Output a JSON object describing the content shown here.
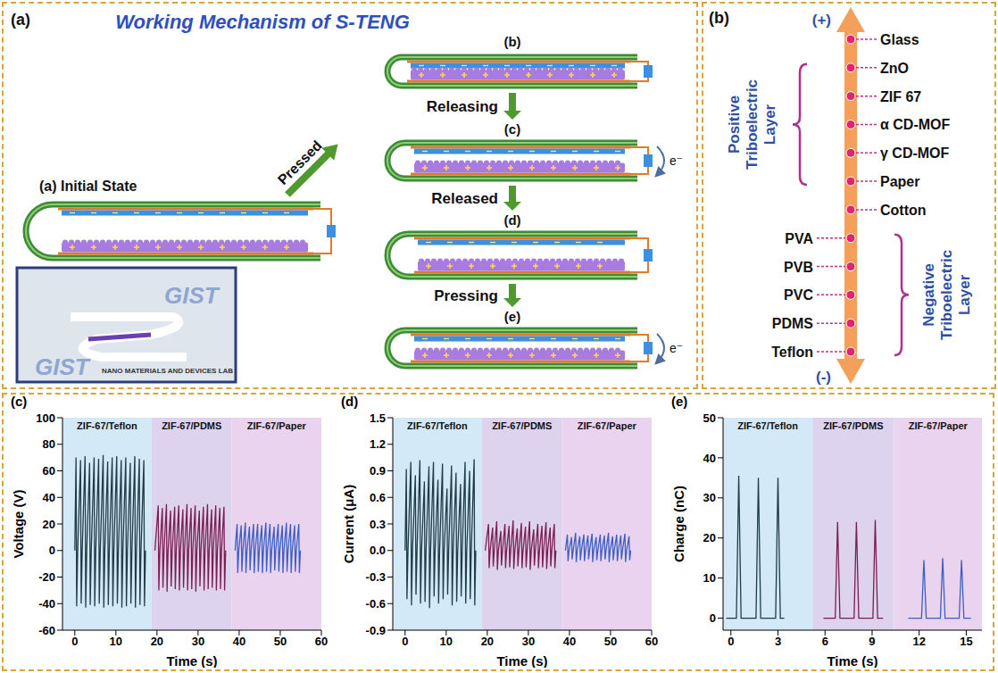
{
  "mechanism": {
    "panel": "(a)",
    "title": "Working Mechanism of S-TENG",
    "initial_state": "(a) Initial State",
    "pressed": "Pressed",
    "electron_label": "e⁻",
    "states": [
      {
        "label": "(b)",
        "electron": false
      },
      {
        "label": "(c)",
        "electron": true
      },
      {
        "label": "(d)",
        "electron": false
      },
      {
        "label": "(e)",
        "electron": true
      }
    ],
    "transitions": [
      "Releasing",
      "Released",
      "Pressing"
    ],
    "inset_texts": [
      "GIST",
      "NANO MATERIALS AND DEVICES LAB"
    ]
  },
  "triboelectric_series": {
    "panel": "(b)",
    "top": "(+)",
    "bottom": "(-)",
    "materials": [
      {
        "name": "Glass",
        "side": "right"
      },
      {
        "name": "ZnO",
        "side": "right"
      },
      {
        "name": "ZIF 67",
        "side": "right"
      },
      {
        "name": "α CD-MOF",
        "side": "right"
      },
      {
        "name": "γ CD-MOF",
        "side": "right"
      },
      {
        "name": "Paper",
        "side": "right"
      },
      {
        "name": "Cotton",
        "side": "right"
      },
      {
        "name": "PVA",
        "side": "left"
      },
      {
        "name": "PVB",
        "side": "left"
      },
      {
        "name": "PVC",
        "side": "left"
      },
      {
        "name": "PDMS",
        "side": "left"
      },
      {
        "name": "Teflon",
        "side": "left"
      }
    ],
    "groups": [
      {
        "label": "Positive Triboelectric Layer",
        "from": "ZnO",
        "to": "Paper",
        "side": "left"
      },
      {
        "label": "Negative Triboelectric Layer",
        "from": "PVA",
        "to": "Teflon",
        "side": "right"
      }
    ]
  },
  "chart_data": [
    {
      "type": "line",
      "panel": "(c)",
      "x_label": "Time (s)",
      "y_label": "Voltage (V)",
      "xlim": [
        -3,
        60
      ],
      "xticks": [
        0,
        10,
        20,
        30,
        40,
        50,
        60
      ],
      "ylim": [
        -60,
        100
      ],
      "yticks": [
        -60,
        -40,
        -20,
        0,
        20,
        40,
        60,
        80,
        100
      ],
      "series": [
        {
          "name": "ZIF-67/Teflon",
          "color": "#1f3d47",
          "background": "#d4e9f7",
          "region": [
            -3,
            18.7
          ],
          "x": [
            0,
            0.3,
            0.45,
            0.7,
            1.4,
            1.55,
            1.8,
            2.5,
            2.65,
            2.9,
            3.6,
            3.75,
            4.0,
            4.7,
            4.85,
            5.1,
            5.8,
            5.95,
            6.2,
            6.9,
            7.05,
            7.3,
            8.0,
            8.15,
            8.4,
            9.1,
            9.25,
            9.5,
            10.2,
            10.35,
            10.6,
            11.3,
            11.45,
            11.7,
            12.4,
            12.55,
            12.8,
            13.5,
            13.65,
            13.9,
            14.6,
            14.75,
            15.0,
            15.7,
            15.85,
            16.1,
            16.8,
            16.95,
            17.2
          ],
          "values": [
            0,
            70,
            -42,
            0,
            68,
            -40,
            0,
            71,
            -43,
            0,
            66,
            -41,
            0,
            70,
            -42,
            0,
            69,
            -40,
            0,
            72,
            -43,
            0,
            67,
            -41,
            0,
            70,
            -42,
            0,
            71,
            -40,
            0,
            68,
            -43,
            0,
            70,
            -42,
            0,
            66,
            -40,
            0,
            71,
            -43,
            0,
            69,
            -41,
            0,
            68,
            -42,
            0
          ]
        },
        {
          "name": "ZIF-67/PDMS",
          "color": "#7b1e52",
          "background": "#ddd3ef",
          "region": [
            18.7,
            38.2
          ],
          "x": [
            19.5,
            20.3,
            20.45,
            20.7,
            21.3,
            21.45,
            21.7,
            22.3,
            22.45,
            22.7,
            23.3,
            23.45,
            23.7,
            24.3,
            24.45,
            24.7,
            25.3,
            25.45,
            25.7,
            26.3,
            26.45,
            26.7,
            27.3,
            27.45,
            27.7,
            28.3,
            28.45,
            28.7,
            29.3,
            29.45,
            29.7,
            30.3,
            30.45,
            30.7,
            31.3,
            31.45,
            31.7,
            32.3,
            32.45,
            32.7,
            33.3,
            33.45,
            33.7,
            34.3,
            34.45,
            34.7,
            35.3,
            35.45,
            35.7,
            36.3,
            36.45,
            36.7
          ],
          "values": [
            0,
            34,
            -30,
            0,
            32,
            -28,
            0,
            35,
            -31,
            0,
            30,
            -27,
            0,
            33,
            -29,
            0,
            34,
            -30,
            0,
            31,
            -28,
            0,
            35,
            -30,
            0,
            32,
            -29,
            0,
            34,
            -31,
            0,
            30,
            -27,
            0,
            33,
            -30,
            0,
            35,
            -29,
            0,
            31,
            -28,
            0,
            34,
            -30,
            0,
            32,
            -29,
            0,
            33,
            -30,
            0
          ]
        },
        {
          "name": "ZIF-67/Paper",
          "color": "#3d5fc4",
          "background": "#ead3ee",
          "region": [
            38.2,
            60
          ],
          "x": [
            39,
            39.5,
            39.65,
            39.9,
            40.5,
            40.65,
            40.9,
            41.5,
            41.65,
            41.9,
            42.5,
            42.65,
            42.9,
            43.5,
            43.65,
            43.9,
            44.5,
            44.65,
            44.9,
            45.5,
            45.65,
            45.9,
            46.5,
            46.65,
            46.9,
            47.5,
            47.65,
            47.9,
            48.5,
            48.65,
            48.9,
            49.5,
            49.65,
            49.9,
            50.5,
            50.65,
            50.9,
            51.5,
            51.65,
            51.9,
            52.5,
            52.65,
            52.9,
            53.5,
            53.65,
            53.9,
            54.5,
            54.65,
            54.9
          ],
          "values": [
            0,
            20,
            -17,
            0,
            19,
            -16,
            0,
            21,
            -17,
            0,
            18,
            -15,
            0,
            20,
            -17,
            0,
            20,
            -16,
            0,
            19,
            -17,
            0,
            21,
            -16,
            0,
            20,
            -17,
            0,
            18,
            -15,
            0,
            20,
            -16,
            0,
            19,
            -17,
            0,
            21,
            -16,
            0,
            20,
            -17,
            0,
            19,
            -16,
            0,
            20,
            -17,
            0
          ]
        }
      ]
    },
    {
      "type": "line",
      "panel": "(d)",
      "x_label": "Time (s)",
      "y_label": "Current (μA)",
      "xlim": [
        -3,
        60
      ],
      "xticks": [
        0,
        10,
        20,
        30,
        40,
        50,
        60
      ],
      "ylim": [
        -0.9,
        1.5
      ],
      "yticks": [
        -0.9,
        -0.6,
        -0.3,
        {
          "value": 0,
          "label": "0.0"
        },
        0.3,
        0.6,
        0.9,
        1.2,
        1.5
      ],
      "series": [
        {
          "name": "ZIF-67/Teflon",
          "color": "#1f3d47",
          "background": "#d4e9f7",
          "region": [
            -3,
            18.7
          ],
          "x": [
            0,
            0.3,
            0.45,
            0.7,
            1.4,
            1.55,
            1.8,
            2.5,
            2.65,
            2.9,
            3.6,
            3.75,
            4.0,
            4.7,
            4.85,
            5.1,
            5.8,
            5.95,
            6.2,
            6.9,
            7.05,
            7.3,
            8.0,
            8.15,
            8.4,
            9.1,
            9.25,
            9.5,
            10.2,
            10.35,
            10.6,
            11.3,
            11.45,
            11.7,
            12.4,
            12.55,
            12.8,
            13.5,
            13.65,
            13.9,
            14.6,
            14.75,
            15.0,
            15.7,
            15.85,
            16.1,
            16.8,
            16.95,
            17.2
          ],
          "values": [
            0,
            0.92,
            -0.55,
            0,
            1.0,
            -0.62,
            0,
            0.85,
            -0.5,
            0,
            1.02,
            -0.6,
            0,
            0.78,
            -0.58,
            0,
            0.95,
            -0.65,
            0,
            1.0,
            -0.52,
            0,
            0.8,
            -0.6,
            0,
            0.98,
            -0.55,
            0,
            0.7,
            -0.5,
            0,
            0.96,
            -0.62,
            0,
            0.88,
            -0.58,
            0,
            0.75,
            -0.52,
            0,
            1.0,
            -0.6,
            0,
            0.9,
            -0.55,
            0,
            1.03,
            -0.62,
            0
          ]
        },
        {
          "name": "ZIF-67/PDMS",
          "color": "#7b1e52",
          "background": "#ddd3ef",
          "region": [
            18.7,
            38.2
          ],
          "x": [
            19.5,
            20.3,
            20.45,
            20.7,
            21.3,
            21.45,
            21.7,
            22.3,
            22.45,
            22.7,
            23.3,
            23.45,
            23.7,
            24.3,
            24.45,
            24.7,
            25.3,
            25.45,
            25.7,
            26.3,
            26.45,
            26.7,
            27.3,
            27.45,
            27.7,
            28.3,
            28.45,
            28.7,
            29.3,
            29.45,
            29.7,
            30.3,
            30.45,
            30.7,
            31.3,
            31.45,
            31.7,
            32.3,
            32.45,
            32.7,
            33.3,
            33.45,
            33.7,
            34.3,
            34.45,
            34.7,
            35.3,
            35.45,
            35.7,
            36.3,
            36.45,
            36.7
          ],
          "values": [
            0,
            0.3,
            -0.2,
            0,
            0.26,
            -0.18,
            0,
            0.33,
            -0.22,
            0,
            0.22,
            -0.17,
            0,
            0.3,
            -0.2,
            0,
            0.28,
            -0.19,
            0,
            0.34,
            -0.21,
            0,
            0.25,
            -0.18,
            0,
            0.31,
            -0.2,
            0,
            0.27,
            -0.19,
            0,
            0.33,
            -0.22,
            0,
            0.24,
            -0.17,
            0,
            0.3,
            -0.2,
            0,
            0.28,
            -0.19,
            0,
            0.32,
            -0.21,
            0,
            0.26,
            -0.18,
            0,
            0.3,
            -0.2,
            0
          ]
        },
        {
          "name": "ZIF-67/Paper",
          "color": "#3d5fc4",
          "background": "#ead3ee",
          "region": [
            38.2,
            60
          ],
          "x": [
            39,
            39.5,
            39.65,
            39.9,
            40.5,
            40.65,
            40.9,
            41.5,
            41.65,
            41.9,
            42.5,
            42.65,
            42.9,
            43.5,
            43.65,
            43.9,
            44.5,
            44.65,
            44.9,
            45.5,
            45.65,
            45.9,
            46.5,
            46.65,
            46.9,
            47.5,
            47.65,
            47.9,
            48.5,
            48.65,
            48.9,
            49.5,
            49.65,
            49.9,
            50.5,
            50.65,
            50.9,
            51.5,
            51.65,
            51.9,
            52.5,
            52.65,
            52.9,
            53.5,
            53.65,
            53.9,
            54.5,
            54.65,
            54.9
          ],
          "values": [
            0,
            0.18,
            -0.12,
            0,
            0.15,
            -0.1,
            0,
            0.2,
            -0.13,
            0,
            0.16,
            -0.11,
            0,
            0.18,
            -0.12,
            0,
            0.17,
            -0.1,
            0,
            0.19,
            -0.13,
            0,
            0.15,
            -0.11,
            0,
            0.18,
            -0.12,
            0,
            0.17,
            -0.1,
            0,
            0.2,
            -0.13,
            0,
            0.16,
            -0.11,
            0,
            0.18,
            -0.12,
            0,
            0.17,
            -0.1,
            0,
            0.19,
            -0.13,
            0,
            0.16,
            -0.11,
            0
          ]
        }
      ]
    },
    {
      "type": "line",
      "panel": "(e)",
      "x_label": "Time (s)",
      "y_label": "Charge (nC)",
      "xlim": [
        -0.5,
        16
      ],
      "xticks": [
        0,
        3,
        6,
        9,
        12,
        15
      ],
      "ylim": [
        -3,
        50
      ],
      "yticks": [
        0,
        10,
        20,
        30,
        40,
        50
      ],
      "series": [
        {
          "name": "ZIF-67/Teflon",
          "color": "#1f3d47",
          "background": "#d4e9f7",
          "region": [
            -0.5,
            5.2
          ],
          "x": [
            -0.3,
            0.35,
            0.5,
            0.65,
            1.6,
            1.75,
            1.9,
            2.85,
            3.0,
            3.15,
            3.4
          ],
          "values": [
            0,
            0,
            35.5,
            0,
            0,
            35,
            0,
            0,
            35,
            0,
            0
          ]
        },
        {
          "name": "ZIF-67/PDMS",
          "color": "#7b1e52",
          "background": "#ddd3ef",
          "region": [
            5.2,
            10.4
          ],
          "x": [
            5.9,
            6.65,
            6.8,
            6.95,
            7.85,
            8.0,
            8.15,
            9.05,
            9.2,
            9.35,
            9.7
          ],
          "values": [
            0,
            0,
            24,
            0,
            0,
            24,
            0,
            0,
            24.5,
            0,
            0
          ]
        },
        {
          "name": "ZIF-67/Paper",
          "color": "#3d5fc4",
          "background": "#ead3ee",
          "region": [
            10.4,
            16
          ],
          "x": [
            11.3,
            12.15,
            12.3,
            12.45,
            13.35,
            13.5,
            13.65,
            14.55,
            14.7,
            14.85,
            15.3
          ],
          "values": [
            0,
            0,
            14.5,
            0,
            0,
            15,
            0,
            0,
            14.5,
            0,
            0
          ]
        }
      ]
    }
  ]
}
